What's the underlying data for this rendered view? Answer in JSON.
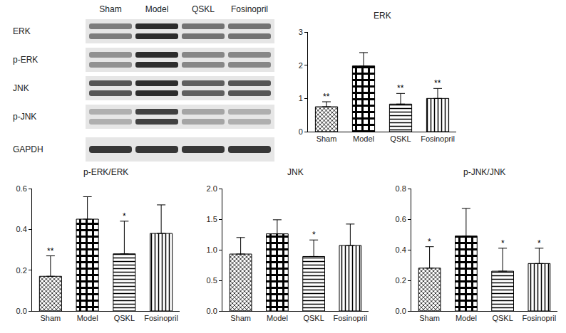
{
  "blot": {
    "lanes": [
      "Sham",
      "Model",
      "QSKL",
      "Fosinopril"
    ],
    "rows": [
      "ERK",
      "p-ERK",
      "JNK",
      "p-JNK",
      "GAPDH"
    ]
  },
  "chart_data": [
    {
      "type": "bar",
      "title": "ERK",
      "categories": [
        "Sham",
        "Model",
        "QSKL",
        "Fosinopril"
      ],
      "values": [
        0.75,
        1.98,
        0.83,
        1.0
      ],
      "errors": [
        0.15,
        0.4,
        0.32,
        0.3
      ],
      "significance": [
        "**",
        null,
        "**",
        "**"
      ],
      "color": "#000000",
      "ylim": [
        0,
        3
      ],
      "yticks": [
        0,
        1,
        2,
        3
      ],
      "grid": false
    },
    {
      "type": "bar",
      "title": "p-ERK/ERK",
      "categories": [
        "Sham",
        "Model",
        "QSKL",
        "Fosinopril"
      ],
      "values": [
        0.17,
        0.45,
        0.28,
        0.38
      ],
      "errors": [
        0.1,
        0.11,
        0.16,
        0.14
      ],
      "significance": [
        "**",
        null,
        "*",
        null
      ],
      "color": "#000000",
      "ylim": [
        0,
        0.6
      ],
      "yticks": [
        {
          "value": 0,
          "label": "0.0"
        },
        0.2,
        0.4,
        0.6
      ],
      "grid": false
    },
    {
      "type": "bar",
      "title": "JNK",
      "categories": [
        "Sham",
        "Model",
        "QSKL",
        "Fosinopril"
      ],
      "values": [
        0.93,
        1.26,
        0.89,
        1.07
      ],
      "errors": [
        0.27,
        0.23,
        0.27,
        0.35
      ],
      "significance": [
        null,
        null,
        "*",
        null
      ],
      "color": "#000000",
      "ylim": [
        0,
        2
      ],
      "yticks": [
        {
          "value": 0,
          "label": "0.0"
        },
        0.5,
        {
          "value": 1,
          "label": "1.0"
        },
        1.5,
        {
          "value": 2,
          "label": "2.0"
        }
      ],
      "grid": false
    },
    {
      "type": "bar",
      "title": "p-JNK/JNK",
      "categories": [
        "Sham",
        "Model",
        "QSKL",
        "Fosinopril"
      ],
      "values": [
        0.28,
        0.49,
        0.26,
        0.31
      ],
      "errors": [
        0.14,
        0.18,
        0.15,
        0.1
      ],
      "significance": [
        "*",
        null,
        "*",
        "*"
      ],
      "color": "#000000",
      "ylim": [
        0,
        0.8
      ],
      "yticks": [
        {
          "value": 0,
          "label": "0.0"
        },
        0.2,
        0.4,
        0.6,
        0.8
      ],
      "grid": false
    }
  ]
}
